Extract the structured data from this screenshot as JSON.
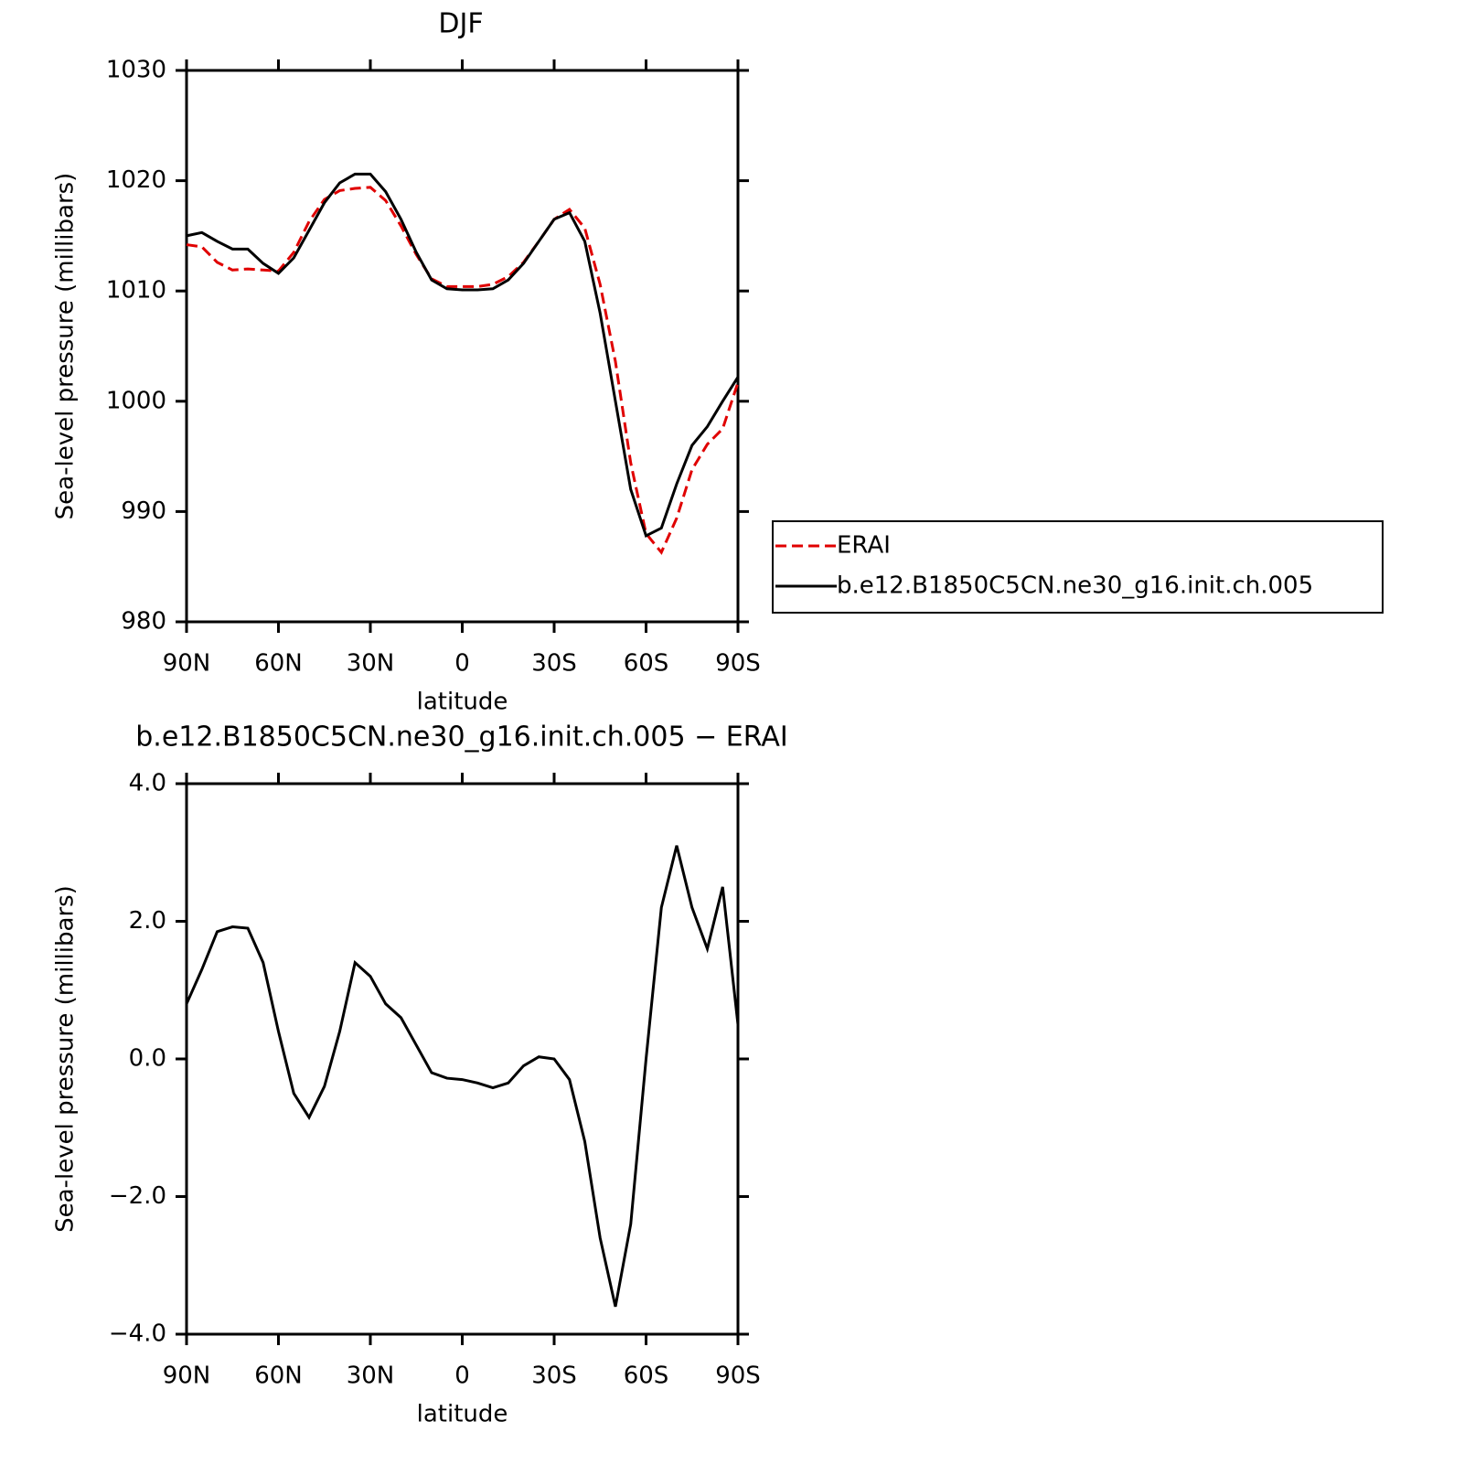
{
  "chart_data": [
    {
      "type": "line",
      "title": "DJF",
      "xlabel": "latitude",
      "ylabel": "Sea-level pressure (millibars)",
      "x": [
        90,
        85,
        80,
        75,
        70,
        65,
        60,
        55,
        50,
        45,
        40,
        35,
        30,
        25,
        20,
        15,
        10,
        5,
        0,
        -5,
        -10,
        -15,
        -20,
        -25,
        -30,
        -35,
        -40,
        -45,
        -50,
        -55,
        -60,
        -65,
        -70,
        -75,
        -80,
        -85,
        -90
      ],
      "series": [
        {
          "name": "ERAI",
          "color": "#e00000",
          "dash": "dashed",
          "values": [
            1014.2,
            1014.0,
            1012.6,
            1011.9,
            1012.0,
            1011.9,
            1011.8,
            1013.5,
            1016.3,
            1018.3,
            1019.1,
            1019.3,
            1019.4,
            1018.2,
            1015.9,
            1013.3,
            1011.1,
            1010.4,
            1010.4,
            1010.4,
            1010.6,
            1011.3,
            1012.6,
            1014.5,
            1016.5,
            1017.4,
            1015.7,
            1010.6,
            1003.6,
            994.4,
            988.0,
            986.3,
            989.4,
            993.8,
            996.1,
            997.5,
            1001.7
          ]
        },
        {
          "name": "b.e12.B1850C5CN.ne30_g16.init.ch.005",
          "color": "#000000",
          "dash": "solid",
          "values": [
            1015.0,
            1015.3,
            1014.5,
            1013.8,
            1013.8,
            1012.5,
            1011.6,
            1013.0,
            1015.5,
            1018.0,
            1019.8,
            1020.6,
            1020.6,
            1019.0,
            1016.5,
            1013.5,
            1011.0,
            1010.2,
            1010.1,
            1010.1,
            1010.2,
            1011.0,
            1012.5,
            1014.5,
            1016.5,
            1017.1,
            1014.5,
            1008.0,
            1000.0,
            992.0,
            987.8,
            988.5,
            992.5,
            996.0,
            997.7,
            1000.0,
            1002.2
          ]
        }
      ],
      "xlim": [
        90,
        -90
      ],
      "xticks": [
        {
          "value": 90,
          "label": "90N"
        },
        {
          "value": 60,
          "label": "60N"
        },
        {
          "value": 30,
          "label": "30N"
        },
        0,
        {
          "value": -30,
          "label": "30S"
        },
        {
          "value": -60,
          "label": "60S"
        },
        {
          "value": -90,
          "label": "90S"
        }
      ],
      "ylim": [
        980,
        1030
      ],
      "yticks": [
        980,
        990,
        1000,
        1010,
        1020,
        1030
      ],
      "legend": "right"
    },
    {
      "type": "line",
      "title": "b.e12.B1850C5CN.ne30_g16.init.ch.005 − ERAI",
      "xlabel": "latitude",
      "ylabel": "Sea-level pressure (millibars)",
      "x": [
        90,
        85,
        80,
        75,
        70,
        65,
        60,
        55,
        50,
        45,
        40,
        35,
        30,
        25,
        20,
        15,
        10,
        5,
        0,
        -5,
        -10,
        -15,
        -20,
        -25,
        -30,
        -35,
        -40,
        -45,
        -50,
        -55,
        -60,
        -65,
        -70,
        -75,
        -80,
        -85,
        -90
      ],
      "series": [
        {
          "color": "#000000",
          "dash": "solid",
          "values": [
            0.8,
            1.3,
            1.85,
            1.92,
            1.9,
            1.4,
            0.4,
            -0.5,
            -0.85,
            -0.4,
            0.4,
            1.4,
            1.2,
            0.8,
            0.6,
            0.2,
            -0.2,
            -0.28,
            -0.3,
            -0.35,
            -0.42,
            -0.35,
            -0.1,
            0.03,
            0.0,
            -0.3,
            -1.2,
            -2.6,
            -3.6,
            -2.4,
            0.0,
            2.2,
            3.1,
            2.2,
            1.6,
            2.5,
            0.5
          ]
        }
      ],
      "xlim": [
        90,
        -90
      ],
      "xticks": [
        {
          "value": 90,
          "label": "90N"
        },
        {
          "value": 60,
          "label": "60N"
        },
        {
          "value": 30,
          "label": "30N"
        },
        0,
        {
          "value": -30,
          "label": "30S"
        },
        {
          "value": -60,
          "label": "60S"
        },
        {
          "value": -90,
          "label": "90S"
        }
      ],
      "ylim": [
        -4,
        4
      ],
      "yticks": [
        {
          "value": -4,
          "label": "−4.0"
        },
        {
          "value": -2,
          "label": "−2.0"
        },
        {
          "value": 0,
          "label": "0.0"
        },
        {
          "value": 2,
          "label": "2.0"
        },
        {
          "value": 4,
          "label": "4.0"
        }
      ]
    }
  ]
}
